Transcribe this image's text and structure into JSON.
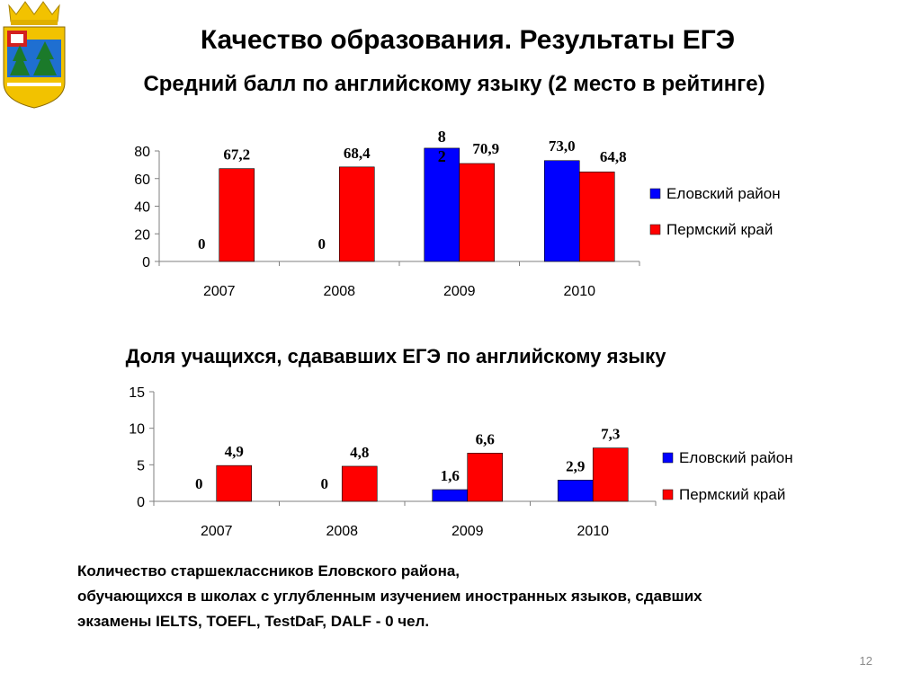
{
  "slide": {
    "title": "Качество образования.  Результаты ЕГЭ",
    "subtitle": "Средний балл по английскому языку (2 место в рейтинге)",
    "chart2_title": "Доля учащихся, сдававших ЕГЭ по английскому языку",
    "footnote": [
      "Количество старшеклассников Еловского района,",
      "обучающихся в школах с углубленным изучением иностранных языков, сдавших",
      "экзамены IELTS, TOEFL, TestDaF, DALF   - 0 чел."
    ],
    "page_number": "12"
  },
  "emblem": {
    "icon": "coat-of-arms-icon",
    "colors": [
      "#f2c200",
      "#1f6fd1",
      "#1b7a2a",
      "#ffffff",
      "#d32020"
    ]
  },
  "chart_data": [
    {
      "type": "bar",
      "title": "Средний балл по английскому языку (2 место в рейтинге)",
      "categories": [
        "2007",
        "2008",
        "2009",
        "2010"
      ],
      "series": [
        {
          "name": "Еловский район",
          "color": "#0000ff",
          "values": [
            0,
            0,
            82,
            73.0
          ],
          "labels": [
            "0",
            "0",
            "8\n2",
            "73,0"
          ]
        },
        {
          "name": "Пермский край",
          "color": "#ff0000",
          "values": [
            67.2,
            68.4,
            70.9,
            64.8
          ],
          "labels": [
            "67,2",
            "68,4",
            "70,9",
            "64,8"
          ]
        }
      ],
      "ylim": [
        0,
        80
      ],
      "yticks": [
        "0",
        "20",
        "40",
        "60",
        "80"
      ],
      "legend": "right"
    },
    {
      "type": "bar",
      "title": "Доля учащихся, сдававших ЕГЭ по английскому языку",
      "categories": [
        "2007",
        "2008",
        "2009",
        "2010"
      ],
      "series": [
        {
          "name": "Еловский район",
          "color": "#0000ff",
          "values": [
            0,
            0,
            1.6,
            2.9
          ],
          "labels": [
            "0",
            "0",
            "1,6",
            "2,9"
          ]
        },
        {
          "name": "Пермский край",
          "color": "#ff0000",
          "values": [
            4.9,
            4.8,
            6.6,
            7.3
          ],
          "labels": [
            "4,9",
            "4,8",
            "6,6",
            "7,3"
          ]
        }
      ],
      "ylim": [
        0,
        15
      ],
      "yticks": [
        "0",
        "5",
        "10",
        "15"
      ],
      "legend": "right"
    }
  ]
}
